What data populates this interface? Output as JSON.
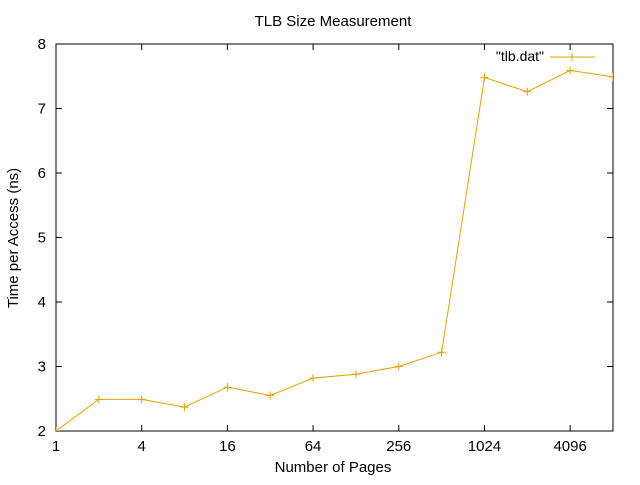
{
  "chart_data": {
    "type": "line",
    "title": "TLB Size Measurement",
    "xlabel": "Number of Pages",
    "ylabel": "Time per Access (ns)",
    "x_scale": "log2",
    "xlim": [
      1,
      8192
    ],
    "ylim": [
      2,
      8
    ],
    "x_ticks": [
      1,
      4,
      16,
      64,
      256,
      1024,
      4096
    ],
    "x_tick_labels": [
      "1",
      "4",
      "16",
      "64",
      "256",
      "1024",
      "4096"
    ],
    "y_ticks": [
      2,
      3,
      4,
      5,
      6,
      7,
      8
    ],
    "y_tick_labels": [
      "2",
      "3",
      "4",
      "5",
      "6",
      "7",
      "8"
    ],
    "grid": false,
    "legend_position": "top-right",
    "series": [
      {
        "name": "\"tlb.dat\"",
        "color": "#e5a000",
        "marker": "plus",
        "x": [
          1,
          2,
          4,
          8,
          16,
          32,
          64,
          128,
          256,
          512,
          1024,
          2048,
          4096,
          8192
        ],
        "y": [
          2.0,
          2.49,
          2.49,
          2.37,
          2.68,
          2.55,
          2.82,
          2.88,
          3.0,
          3.22,
          7.48,
          7.26,
          7.59,
          7.49
        ]
      }
    ]
  }
}
